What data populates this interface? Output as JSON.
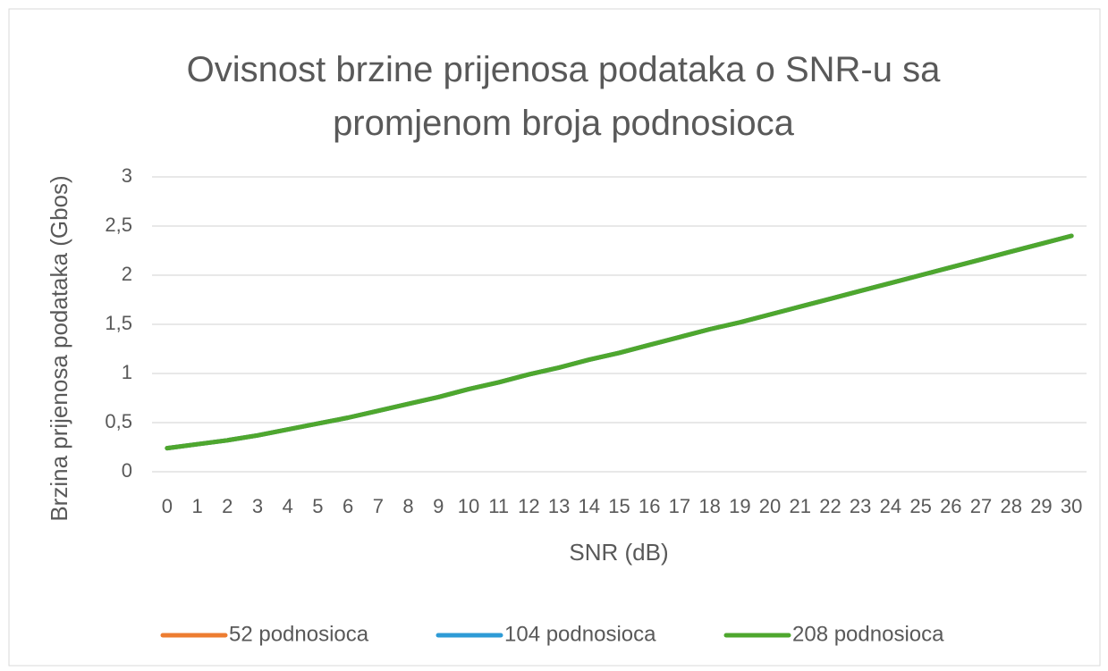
{
  "chart_data": {
    "type": "line",
    "title": "Ovisnost brzine prijenosa podataka o SNR-u sa promjenom broja podnosioca",
    "x_label": "SNR (dB)",
    "y_label": "Brzina prijenosa podataka (Gbos)",
    "categories": [
      "0",
      "1",
      "2",
      "3",
      "4",
      "5",
      "6",
      "7",
      "8",
      "9",
      "10",
      "11",
      "12",
      "13",
      "14",
      "15",
      "16",
      "17",
      "18",
      "19",
      "20",
      "21",
      "22",
      "23",
      "24",
      "25",
      "26",
      "27",
      "28",
      "29",
      "30"
    ],
    "series": [
      {
        "name": "52 podnosioca",
        "color": "#ed7d31",
        "values": [
          0.24,
          0.28,
          0.32,
          0.37,
          0.43,
          0.49,
          0.55,
          0.62,
          0.69,
          0.76,
          0.84,
          0.91,
          0.99,
          1.06,
          1.14,
          1.21,
          1.29,
          1.37,
          1.45,
          1.52,
          1.6,
          1.68,
          1.76,
          1.84,
          1.92,
          2.0,
          2.08,
          2.16,
          2.24,
          2.32,
          2.4
        ]
      },
      {
        "name": "104 podnosioca",
        "color": "#2e9bd6",
        "values": [
          0.24,
          0.28,
          0.32,
          0.37,
          0.43,
          0.49,
          0.55,
          0.62,
          0.69,
          0.76,
          0.84,
          0.91,
          0.99,
          1.06,
          1.14,
          1.21,
          1.29,
          1.37,
          1.45,
          1.52,
          1.6,
          1.68,
          1.76,
          1.84,
          1.92,
          2.0,
          2.08,
          2.16,
          2.24,
          2.32,
          2.4
        ]
      },
      {
        "name": "208 podnosioca",
        "color": "#4ea72e",
        "values": [
          0.24,
          0.28,
          0.32,
          0.37,
          0.43,
          0.49,
          0.55,
          0.62,
          0.69,
          0.76,
          0.84,
          0.91,
          0.99,
          1.06,
          1.14,
          1.21,
          1.29,
          1.37,
          1.45,
          1.52,
          1.6,
          1.68,
          1.76,
          1.84,
          1.92,
          2.0,
          2.08,
          2.16,
          2.24,
          2.32,
          2.4
        ]
      }
    ],
    "ylim": [
      0,
      3
    ],
    "yticks": [
      0,
      {
        "value": 0.5,
        "label": "0,5"
      },
      1,
      {
        "value": 1.5,
        "label": "1,5"
      },
      2,
      {
        "value": 2.5,
        "label": "2,5"
      },
      3
    ],
    "grid": true,
    "legend": "bottom"
  }
}
